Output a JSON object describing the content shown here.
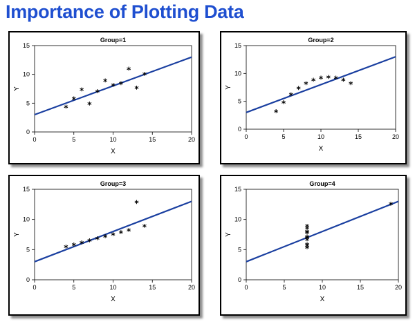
{
  "title": "Importance of Plotting Data",
  "colors": {
    "title": "#1f4fd0",
    "fit_line": "#1a3fa0",
    "points": "#000000"
  },
  "chart_data": [
    {
      "type": "scatter",
      "title": "Group=1",
      "xlabel": "X",
      "ylabel": "Y",
      "xlim": [
        0,
        20
      ],
      "ylim": [
        0,
        15
      ],
      "xticks": [
        0,
        5,
        10,
        15,
        20
      ],
      "yticks": [
        0,
        5,
        10,
        15
      ],
      "grid": false,
      "marker": "*",
      "x": [
        10,
        8,
        13,
        9,
        11,
        14,
        6,
        4,
        12,
        7,
        5
      ],
      "y": [
        8.04,
        6.95,
        7.58,
        8.81,
        8.33,
        9.96,
        7.24,
        4.26,
        10.84,
        4.82,
        5.68
      ],
      "fit_line": {
        "intercept": 3.0,
        "slope": 0.5
      }
    },
    {
      "type": "scatter",
      "title": "Group=2",
      "xlabel": "X",
      "ylabel": "Y",
      "xlim": [
        0,
        20
      ],
      "ylim": [
        0,
        15
      ],
      "xticks": [
        0,
        5,
        10,
        15,
        20
      ],
      "yticks": [
        0,
        5,
        10,
        15
      ],
      "grid": false,
      "marker": "*",
      "x": [
        10,
        8,
        13,
        9,
        11,
        14,
        6,
        4,
        12,
        7,
        5
      ],
      "y": [
        9.14,
        8.14,
        8.74,
        8.77,
        9.26,
        8.1,
        6.13,
        3.1,
        9.13,
        7.26,
        4.74
      ],
      "fit_line": {
        "intercept": 3.0,
        "slope": 0.5
      }
    },
    {
      "type": "scatter",
      "title": "Group=3",
      "xlabel": "X",
      "ylabel": "Y",
      "xlim": [
        0,
        20
      ],
      "ylim": [
        0,
        15
      ],
      "xticks": [
        0,
        5,
        10,
        15,
        20
      ],
      "yticks": [
        0,
        5,
        10,
        15
      ],
      "grid": false,
      "marker": "*",
      "x": [
        10,
        8,
        13,
        9,
        11,
        14,
        6,
        4,
        12,
        7,
        5
      ],
      "y": [
        7.46,
        6.77,
        12.74,
        7.11,
        7.81,
        8.84,
        6.08,
        5.39,
        8.15,
        6.42,
        5.73
      ],
      "fit_line": {
        "intercept": 3.0,
        "slope": 0.5
      }
    },
    {
      "type": "scatter",
      "title": "Group=4",
      "xlabel": "X",
      "ylabel": "Y",
      "xlim": [
        0,
        20
      ],
      "ylim": [
        0,
        15
      ],
      "xticks": [
        0,
        5,
        10,
        15,
        20
      ],
      "yticks": [
        0,
        5,
        10,
        15
      ],
      "grid": false,
      "marker": "*",
      "x": [
        8,
        8,
        8,
        8,
        8,
        8,
        8,
        19,
        8,
        8,
        8
      ],
      "y": [
        6.58,
        5.76,
        7.71,
        8.84,
        8.47,
        7.04,
        5.25,
        12.5,
        5.56,
        7.91,
        6.89
      ],
      "fit_line": {
        "intercept": 3.0,
        "slope": 0.5
      }
    }
  ]
}
